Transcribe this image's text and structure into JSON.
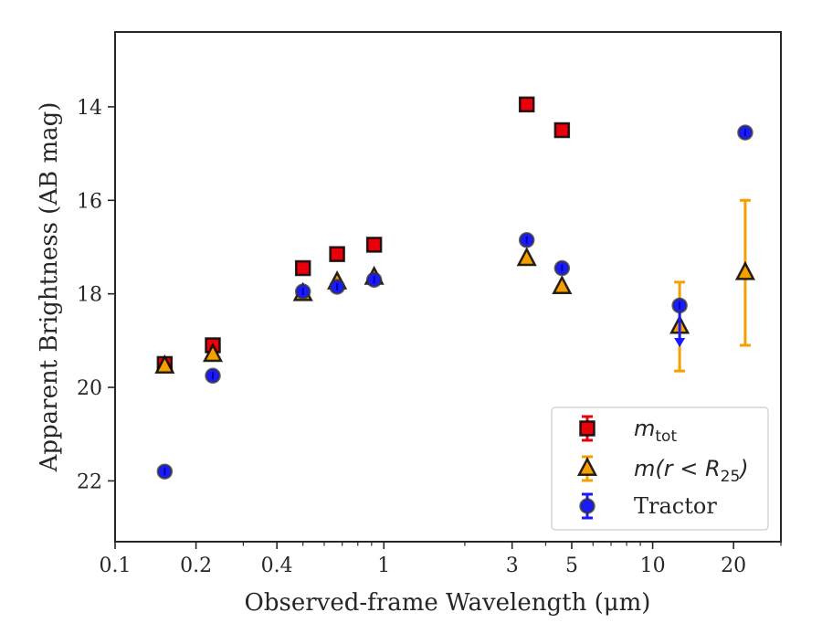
{
  "chart_data": {
    "type": "scatter",
    "xlabel": "Observed-frame Wavelength (μm)",
    "ylabel": "Apparent Brightness (AB mag)",
    "xscale": "log",
    "xlim": [
      0.1,
      30
    ],
    "ylim": [
      23.3,
      12.4
    ],
    "y_inverted": true,
    "grid": false,
    "legend_position": "lower-right",
    "x_ticks": [
      {
        "value": 0.1,
        "label": "0.1"
      },
      {
        "value": 0.2,
        "label": "0.2"
      },
      {
        "value": 0.4,
        "label": "0.4"
      },
      {
        "value": 1,
        "label": "1"
      },
      {
        "value": 3,
        "label": "3"
      },
      {
        "value": 5,
        "label": "5"
      },
      {
        "value": 10,
        "label": "10"
      },
      {
        "value": 20,
        "label": "20"
      }
    ],
    "y_ticks": [
      {
        "value": 14,
        "label": "14"
      },
      {
        "value": 16,
        "label": "16"
      },
      {
        "value": 18,
        "label": "18"
      },
      {
        "value": 20,
        "label": "20"
      },
      {
        "value": 22,
        "label": "22"
      }
    ],
    "series": [
      {
        "name": "m_tot",
        "legend_label": {
          "main": "m",
          "sub": "tot"
        },
        "marker": "square",
        "color": "#e8000b",
        "points": [
          {
            "x": 0.153,
            "y": 19.5
          },
          {
            "x": 0.231,
            "y": 19.1
          },
          {
            "x": 0.5,
            "y": 17.45
          },
          {
            "x": 0.67,
            "y": 17.15
          },
          {
            "x": 0.92,
            "y": 16.95
          },
          {
            "x": 3.4,
            "y": 13.95
          },
          {
            "x": 4.6,
            "y": 14.5
          }
        ]
      },
      {
        "name": "m(r < R_25)",
        "legend_label": {
          "main": "m(r < R",
          "sub": "25",
          "tail": ")"
        },
        "marker": "triangle",
        "color": "#f5a000",
        "points": [
          {
            "x": 0.153,
            "y": 19.55
          },
          {
            "x": 0.231,
            "y": 19.3
          },
          {
            "x": 0.5,
            "y": 18.0
          },
          {
            "x": 0.67,
            "y": 17.75
          },
          {
            "x": 0.92,
            "y": 17.65
          },
          {
            "x": 3.4,
            "y": 17.25
          },
          {
            "x": 4.6,
            "y": 17.85
          },
          {
            "x": 12.6,
            "y": 18.7,
            "yerr": 0.95
          },
          {
            "x": 22.1,
            "y": 17.55,
            "yerr": 1.55
          }
        ]
      },
      {
        "name": "Tractor",
        "legend_label": {
          "main": "Tractor"
        },
        "marker": "circle",
        "color": "#1a1aff",
        "points": [
          {
            "x": 0.153,
            "y": 21.8
          },
          {
            "x": 0.231,
            "y": 19.75
          },
          {
            "x": 0.5,
            "y": 17.95
          },
          {
            "x": 0.67,
            "y": 17.85
          },
          {
            "x": 0.92,
            "y": 17.7
          },
          {
            "x": 3.4,
            "y": 16.85
          },
          {
            "x": 4.6,
            "y": 17.45
          },
          {
            "x": 12.6,
            "y": 18.25,
            "upper_limit_to": 19.1
          },
          {
            "x": 22.1,
            "y": 14.55
          }
        ]
      }
    ]
  }
}
